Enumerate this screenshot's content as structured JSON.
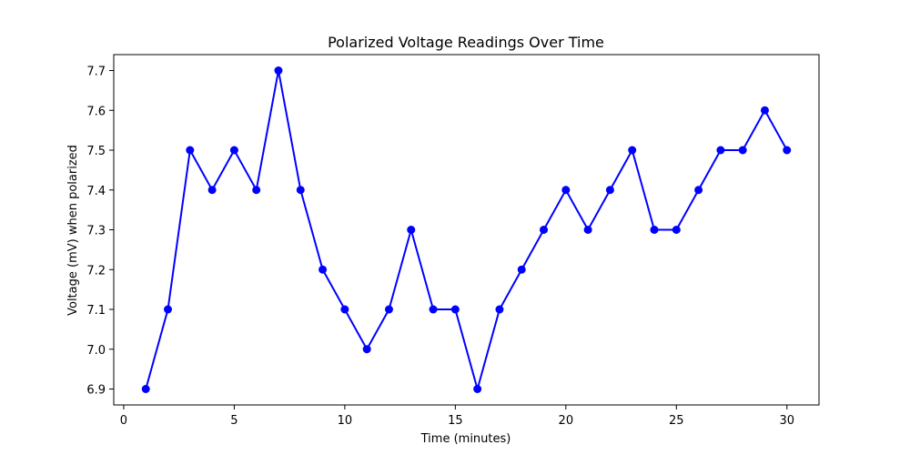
{
  "chart_data": {
    "type": "line",
    "title": "Polarized Voltage Readings Over Time",
    "xlabel": "Time (minutes)",
    "ylabel": "Voltage (mV) when polarized",
    "xlim": [
      -0.45,
      31.45
    ],
    "ylim": [
      6.86,
      7.74
    ],
    "xticks": [
      0,
      5,
      10,
      15,
      20,
      25,
      30
    ],
    "yticks": [
      6.9,
      7.0,
      7.1,
      7.2,
      7.3,
      7.4,
      7.5,
      7.6,
      7.7
    ],
    "xtick_labels": [
      "0",
      "5",
      "10",
      "15",
      "20",
      "25",
      "30"
    ],
    "ytick_labels": [
      "6.9",
      "7.0",
      "7.1",
      "7.2",
      "7.3",
      "7.4",
      "7.5",
      "7.6",
      "7.7"
    ],
    "grid": false,
    "series": [
      {
        "color": "#0000ff",
        "marker": "circle",
        "x": [
          1,
          2,
          3,
          4,
          5,
          6,
          7,
          8,
          9,
          10,
          11,
          12,
          13,
          14,
          15,
          16,
          17,
          18,
          19,
          20,
          21,
          22,
          23,
          24,
          25,
          26,
          27,
          28,
          29,
          30
        ],
        "y": [
          6.9,
          7.1,
          7.5,
          7.4,
          7.5,
          7.4,
          7.7,
          7.4,
          7.2,
          7.1,
          7.0,
          7.1,
          7.3,
          7.1,
          7.1,
          6.9,
          7.1,
          7.2,
          7.3,
          7.4,
          7.3,
          7.4,
          7.5,
          7.3,
          7.3,
          7.4,
          7.5,
          7.5,
          7.6,
          7.5
        ]
      }
    ]
  }
}
